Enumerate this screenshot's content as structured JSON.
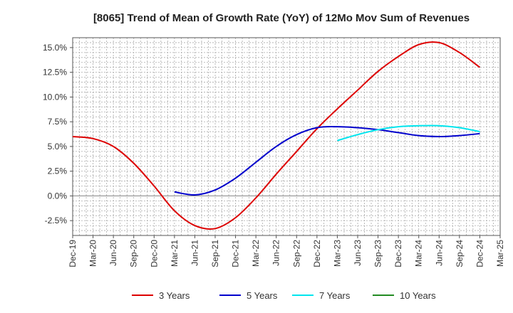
{
  "chart_data": {
    "type": "line",
    "title": "[8065]  Trend of Mean of Growth Rate (YoY) of 12Mo Mov Sum of Revenues",
    "xlabel": "",
    "ylabel": "",
    "ylim": [
      -4.0,
      16.0
    ],
    "yticks": [
      -2.5,
      0.0,
      2.5,
      5.0,
      7.5,
      10.0,
      12.5,
      15.0
    ],
    "ytick_labels": [
      "-2.5%",
      "0.0%",
      "2.5%",
      "5.0%",
      "7.5%",
      "10.0%",
      "12.5%",
      "15.0%"
    ],
    "categories": [
      "Dec-19",
      "Mar-20",
      "Jun-20",
      "Sep-20",
      "Dec-20",
      "Mar-21",
      "Jun-21",
      "Sep-21",
      "Dec-21",
      "Mar-22",
      "Jun-22",
      "Sep-22",
      "Dec-22",
      "Mar-23",
      "Jun-23",
      "Sep-23",
      "Dec-23",
      "Mar-24",
      "Jun-24",
      "Sep-24",
      "Dec-24",
      "Mar-25"
    ],
    "grid": true,
    "legend_position": "bottom",
    "series": [
      {
        "name": "3 Years",
        "color": "#dd0000",
        "values": [
          6.0,
          5.8,
          5.0,
          3.3,
          1.0,
          -1.5,
          -3.0,
          -3.3,
          -2.2,
          -0.2,
          2.2,
          4.5,
          6.8,
          8.8,
          10.7,
          12.6,
          14.1,
          15.3,
          15.5,
          14.5,
          13.0,
          null
        ]
      },
      {
        "name": "5 Years",
        "color": "#0000cc",
        "values": [
          null,
          null,
          null,
          null,
          null,
          0.4,
          0.1,
          0.6,
          1.8,
          3.4,
          5.0,
          6.2,
          6.9,
          7.0,
          6.9,
          6.7,
          6.4,
          6.1,
          6.0,
          6.1,
          6.3,
          null
        ]
      },
      {
        "name": "7 Years",
        "color": "#00e5ee",
        "values": [
          null,
          null,
          null,
          null,
          null,
          null,
          null,
          null,
          null,
          null,
          null,
          null,
          null,
          5.6,
          6.2,
          6.7,
          7.0,
          7.1,
          7.1,
          6.9,
          6.5,
          null
        ]
      },
      {
        "name": "10 Years",
        "color": "#228b22",
        "values": [
          null,
          null,
          null,
          null,
          null,
          null,
          null,
          null,
          null,
          null,
          null,
          null,
          null,
          null,
          null,
          null,
          null,
          null,
          null,
          null,
          null,
          null
        ]
      }
    ]
  }
}
